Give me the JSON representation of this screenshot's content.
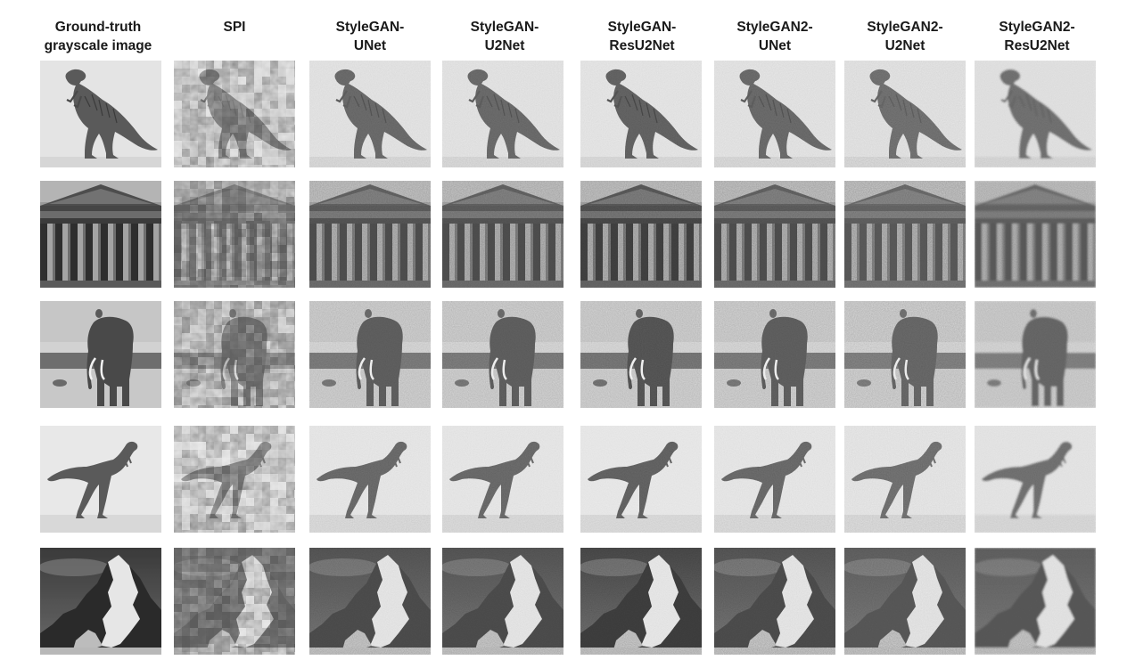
{
  "figure": {
    "columns": [
      {
        "key": "gt",
        "header": [
          "Ground-truth",
          "grayscale image"
        ]
      },
      {
        "key": "spi",
        "header": [
          "SPI"
        ]
      },
      {
        "key": "sg-unet",
        "header": [
          "StyleGAN-",
          "UNet"
        ]
      },
      {
        "key": "sg-u2net",
        "header": [
          "StyleGAN-",
          "U2Net"
        ]
      },
      {
        "key": "sg-resu2",
        "header": [
          "StyleGAN-",
          "ResU2Net"
        ]
      },
      {
        "key": "sg2-unet",
        "header": [
          "StyleGAN2-",
          "UNet"
        ]
      },
      {
        "key": "sg2-u2net",
        "header": [
          "StyleGAN2-",
          "U2Net"
        ]
      },
      {
        "key": "sg2-resu2",
        "header": [
          "StyleGAN2-",
          "ResU2Net"
        ]
      }
    ],
    "rows": [
      {
        "subject": "dinosaur-standing"
      },
      {
        "subject": "temple"
      },
      {
        "subject": "elephant"
      },
      {
        "subject": "dinosaur-running"
      },
      {
        "subject": "mountain"
      }
    ]
  }
}
